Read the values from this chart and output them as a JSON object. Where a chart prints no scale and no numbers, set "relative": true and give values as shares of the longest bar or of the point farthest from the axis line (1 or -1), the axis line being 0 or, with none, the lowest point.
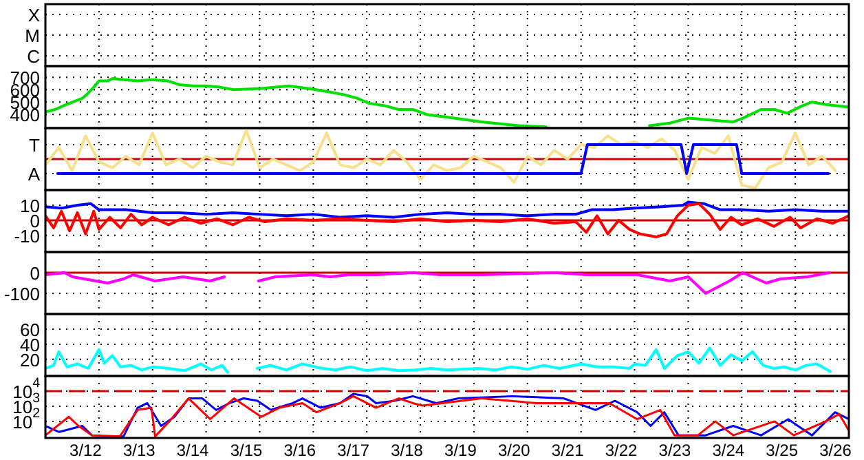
{
  "chart_data": [
    {
      "type": "heatmap",
      "categories": [
        null
      ],
      "y_categories": [
        "X",
        "M",
        "C"
      ],
      "cells": [
        [
          null
        ],
        [
          null
        ],
        [
          null
        ]
      ],
      "grid": true
    },
    {
      "type": "line",
      "xlim": [
        "--03-12",
        "--03-27"
      ],
      "ylim": [
        290,
        790
      ],
      "yticks": [
        400,
        500,
        600,
        700
      ],
      "grid": true,
      "tick_labels": "y",
      "series": [
        {
          "color": "#00e000",
          "x": [
            "--03-12T00:00",
            "--03-12T04:20",
            "--03-12T09:20",
            "--03-12T13:40",
            "--03-12T16:30",
            "--03-12T18:30",
            "--03-12T21:40",
            "--03-13T00:00",
            "--03-13T03:50",
            "--03-13T06:10",
            "--03-13T11:00",
            "--03-13T17:20",
            "--03-13T23:30",
            "--03-14T07:00",
            "--03-14T12:00",
            "--03-14T18:00",
            "--03-15T00:00",
            "--03-15T06:10",
            "--03-15T12:30",
            "--03-16T00:40",
            "--03-16T13:10",
            "--03-17T01:20",
            "--03-17T07:40",
            "--03-17T13:40",
            "--03-17T19:50",
            "--03-18T01:00",
            "--03-18T08:10",
            "--03-18T14:20",
            "--03-18T20:40",
            "--03-19T02:50",
            "--03-19T15:10",
            "--03-20T03:20",
            "--03-20T20:10",
            "--03-21T08:20",
            "--03-21T14:20",
            "--03-23T06:40",
            "--03-23T15:50",
            "--03-24T00:00",
            "--03-24T20:10",
            "--03-25T00:30",
            "--03-25T08:40",
            "--03-25T14:40",
            "--03-25T20:20",
            "--03-26T03:10",
            "--03-26T07:30",
            "--03-26T13:40",
            "--03-27T00:00"
          ],
          "values": [
            420,
            440,
            480,
            510,
            530,
            560,
            620,
            670,
            670,
            690,
            680,
            670,
            680,
            670,
            640,
            630,
            630,
            620,
            600,
            610,
            630,
            600,
            580,
            560,
            530,
            490,
            470,
            440,
            440,
            400,
            370,
            340,
            310,
            300,
            null,
            310,
            330,
            370,
            340,
            370,
            440,
            440,
            410,
            470,
            500,
            480,
            460
          ]
        }
      ]
    },
    {
      "type": "line",
      "relative": true,
      "xlim": [
        "--03-12",
        "--03-27"
      ],
      "annotations": [
        "T",
        "A"
      ],
      "grid": true,
      "tick_labels": "y",
      "ref_lines": [
        {
          "axis": "y",
          "value": 0.5,
          "color": "#cc0000"
        }
      ],
      "series": [
        {
          "color": "#f8e08c",
          "x": [
            "--03-12T00:00",
            "--03-12T06:00",
            "--03-12T12:00",
            "--03-12T18:00",
            "--03-13T00:00",
            "--03-13T06:00",
            "--03-13T12:00",
            "--03-13T18:00",
            "--03-14T00:00",
            "--03-14T06:00",
            "--03-14T12:00",
            "--03-14T18:00",
            "--03-15T00:00",
            "--03-15T06:00",
            "--03-15T12:00",
            "--03-15T18:00",
            "--03-16T00:00",
            "--03-16T06:00",
            "--03-16T12:00",
            "--03-16T18:00",
            "--03-17T00:00",
            "--03-17T06:00",
            "--03-17T12:00",
            "--03-17T18:00",
            "--03-18T00:00",
            "--03-18T06:00",
            "--03-18T12:00",
            "--03-18T18:00",
            "--03-19T00:00",
            "--03-19T06:00",
            "--03-19T12:00",
            "--03-19T18:00",
            "--03-20T00:00",
            "--03-20T06:00",
            "--03-20T12:00",
            "--03-20T18:00",
            "--03-21T00:00",
            "--03-21T06:00",
            "--03-21T12:00",
            "--03-21T18:00",
            "--03-22T00:00",
            "--03-22T06:00",
            "--03-22T12:00",
            "--03-22T18:00",
            "--03-23T00:00",
            "--03-23T06:00",
            "--03-23T12:00",
            "--03-23T18:00",
            "--03-24T00:00",
            "--03-24T06:00",
            "--03-24T12:00",
            "--03-24T18:00",
            "--03-25T00:00",
            "--03-25T06:00",
            "--03-25T12:00",
            "--03-25T18:00",
            "--03-26T00:00",
            "--03-26T06:00",
            "--03-26T12:00",
            "--03-26T18:00"
          ],
          "values": [
            0.4,
            0.7,
            0.3,
            0.9,
            0.45,
            0.35,
            0.55,
            0.4,
            0.95,
            0.4,
            0.5,
            0.35,
            0.55,
            0.45,
            0.4,
            1,
            0.35,
            0.5,
            0.4,
            0.3,
            0.45,
            0.95,
            0.4,
            0.35,
            0.5,
            0.4,
            0.65,
            0.45,
            0.15,
            0.4,
            0.3,
            0.35,
            0.55,
            0.45,
            0.35,
            0.1,
            0.55,
            0.4,
            0.65,
            0.5,
            0.75,
            0.7,
            0.9,
            0.75,
            0.8,
            0.7,
            0.85,
            0.65,
            0.15,
            0.7,
            0.6,
            0.9,
            0.05,
            0,
            0.35,
            0.45,
            0.95,
            0.4,
            0.55,
            0.3
          ]
        },
        {
          "color": "#0000ff",
          "x": [
            "--03-12T05:30",
            "--03-22T00:00",
            "--03-22T02:50",
            "--03-23T20:50",
            "--03-23T23:20",
            "--03-24T02:20",
            "--03-24T21:40",
            "--03-25T00:00",
            "--03-26T14:50"
          ],
          "values": [
            0.25,
            0.25,
            0.75,
            0.75,
            0.25,
            0.75,
            0.75,
            0.25,
            0.25
          ]
        }
      ]
    },
    {
      "type": "line",
      "xlim": [
        "--03-12",
        "--03-27"
      ],
      "ylim": [
        -21,
        20
      ],
      "yticks": [
        -10,
        0,
        10
      ],
      "grid": true,
      "tick_labels": "y",
      "ref_lines": [
        {
          "axis": "y",
          "value": 0,
          "color": "#cc0000"
        }
      ],
      "series": [
        {
          "color": "#0000ff",
          "x": [
            "--03-12T00:00",
            "--03-12T07:10",
            "--03-12T14:20",
            "--03-12T20:20",
            "--03-13T00:00",
            "--03-13T12:00",
            "--03-14T00:00",
            "--03-14T12:00",
            "--03-15T00:00",
            "--03-15T12:00",
            "--03-16T00:00",
            "--03-16T12:00",
            "--03-17T00:00",
            "--03-17T12:00",
            "--03-18T00:00",
            "--03-18T12:00",
            "--03-19T00:00",
            "--03-19T12:00",
            "--03-20T00:00",
            "--03-20T12:00",
            "--03-21T00:00",
            "--03-21T12:00",
            "--03-21T21:40",
            "--03-22T04:50",
            "--03-22T14:20",
            "--03-23T00:00",
            "--03-23T12:00",
            "--03-23T21:40",
            "--03-24T00:00",
            "--03-24T07:10",
            "--03-24T14:20",
            "--03-25T00:00",
            "--03-25T12:00",
            "--03-26T00:00",
            "--03-26T12:00",
            "--03-27T00:00"
          ],
          "values": [
            9,
            8,
            10,
            11,
            7,
            7,
            5,
            5,
            4,
            5,
            4,
            3,
            4,
            2,
            3,
            2,
            4,
            5,
            4,
            4,
            3,
            4,
            4,
            7,
            7,
            8,
            9,
            10,
            12,
            11,
            7,
            7,
            6,
            7,
            6,
            6
          ]
        },
        {
          "color": "#ff0000",
          "x": [
            "--03-12T00:00",
            "--03-12T03:40",
            "--03-12T07:10",
            "--03-12T10:50",
            "--03-12T14:20",
            "--03-12T18:00",
            "--03-12T21:40",
            "--03-13T00:00",
            "--03-13T04:50",
            "--03-13T09:40",
            "--03-13T14:20",
            "--03-13T19:10",
            "--03-14T00:00",
            "--03-14T07:10",
            "--03-14T14:20",
            "--03-14T21:40",
            "--03-15T04:50",
            "--03-15T12:00",
            "--03-15T19:10",
            "--03-16T02:20",
            "--03-16T12:00",
            "--03-17T00:00",
            "--03-17T12:00",
            "--03-18T00:00",
            "--03-18T12:00",
            "--03-19T00:00",
            "--03-19T12:00",
            "--03-20T00:00",
            "--03-20T12:00",
            "--03-21T00:00",
            "--03-21T12:00",
            "--03-21T21:40",
            "--03-22T02:20",
            "--03-22T07:10",
            "--03-22T12:00",
            "--03-22T16:50",
            "--03-22T21:40",
            "--03-23T02:20",
            "--03-23T09:40",
            "--03-23T14:20",
            "--03-23T19:10",
            "--03-24T00:00",
            "--03-24T04:50",
            "--03-24T09:40",
            "--03-24T14:20",
            "--03-24T19:10",
            "--03-25T00:00",
            "--03-25T07:10",
            "--03-25T14:20",
            "--03-25T21:40",
            "--03-26T02:20",
            "--03-26T09:40",
            "--03-26T16:50",
            "--03-27T00:00"
          ],
          "values": [
            3,
            -5,
            6,
            -7,
            5,
            -9,
            6,
            -6,
            2,
            -5,
            4,
            -3,
            2,
            -3,
            2,
            -2,
            1,
            -3,
            2,
            -1,
            1,
            0,
            1,
            0,
            -1,
            1,
            -1,
            0,
            -1,
            1,
            -2,
            -1,
            -8,
            3,
            -9,
            0,
            -6,
            -9,
            -11,
            -9,
            3,
            10,
            11,
            4,
            -6,
            2,
            -3,
            1,
            -4,
            2,
            -5,
            1,
            -2,
            3
          ]
        }
      ]
    },
    {
      "type": "line",
      "xlim": [
        "--03-12",
        "--03-27"
      ],
      "ylim": [
        -200,
        100
      ],
      "yticks": [
        -100,
        0
      ],
      "grid": true,
      "tick_labels": "y",
      "ref_lines": [
        {
          "axis": "y",
          "value": 0,
          "color": "#cc0000"
        }
      ],
      "series": [
        {
          "color": "#ff00ff",
          "x": [
            "--03-12T00:00",
            "--03-12T08:40",
            "--03-12T12:10",
            "--03-13T03:50",
            "--03-13T11:00",
            "--03-13T15:20",
            "--03-14T01:10",
            "--03-14T13:40",
            "--03-15T01:50",
            "--03-15T08:10",
            "--03-15T16:50",
            "--03-15T23:30",
            "--03-16T07:00",
            "--03-16T23:30",
            "--03-17T07:40",
            "--03-17T15:40",
            "--03-18T04:10",
            "--03-18T20:40",
            "--03-19T08:50",
            "--03-20T03:20",
            "--03-21T12:00",
            "--03-22T02:50",
            "--03-23T01:10",
            "--03-23T15:50",
            "--03-24T00:00",
            "--03-24T07:50",
            "--03-24T18:30",
            "--03-25T00:30",
            "--03-25T11:00",
            "--03-25T17:20",
            "--03-26T05:30",
            "--03-26T15:20"
          ],
          "values": [
            -10,
            0,
            -20,
            -50,
            -30,
            -10,
            -40,
            -20,
            -40,
            -20,
            null,
            -40,
            -20,
            -10,
            -20,
            -10,
            -10,
            0,
            -10,
            -10,
            0,
            -10,
            -10,
            -40,
            -20,
            -100,
            -40,
            0,
            -50,
            -30,
            -20,
            0
          ]
        }
      ]
    },
    {
      "type": "line",
      "xlim": [
        "--03-12",
        "--03-27"
      ],
      "ylim": [
        -2,
        80
      ],
      "yticks": [
        20,
        40,
        60
      ],
      "grid": true,
      "tick_labels": "y",
      "series": [
        {
          "color": "#00ffff",
          "x": [
            "--03-12T00:00",
            "--03-12T03:40",
            "--03-12T06:00",
            "--03-12T09:40",
            "--03-12T14:20",
            "--03-12T19:10",
            "--03-13T00:00",
            "--03-13T02:20",
            "--03-13T06:00",
            "--03-13T09:40",
            "--03-13T14:20",
            "--03-13T19:10",
            "--03-14T00:00",
            "--03-14T07:10",
            "--03-14T14:20",
            "--03-14T21:40",
            "--03-15T02:20",
            "--03-15T07:10",
            "--03-15T09:40",
            "--03-15T16:50",
            "--03-15T22:50",
            "--03-16T04:50",
            "--03-16T12:00",
            "--03-16T19:10",
            "--03-17T02:20",
            "--03-17T09:40",
            "--03-17T16:50",
            "--03-18T00:00",
            "--03-18T07:10",
            "--03-18T14:20",
            "--03-18T21:40",
            "--03-19T04:50",
            "--03-19T12:00",
            "--03-19T19:10",
            "--03-20T02:20",
            "--03-20T09:40",
            "--03-20T16:50",
            "--03-21T00:00",
            "--03-21T07:10",
            "--03-21T14:20",
            "--03-22T00:00",
            "--03-22T07:10",
            "--03-22T14:20",
            "--03-22T21:40",
            "--03-23T00:00",
            "--03-23T04:50",
            "--03-23T09:40",
            "--03-23T13:20",
            "--03-23T19:10",
            "--03-24T00:00",
            "--03-24T04:50",
            "--03-24T09:40",
            "--03-24T14:20",
            "--03-24T19:10",
            "--03-25T00:00",
            "--03-25T04:50",
            "--03-25T09:40",
            "--03-25T14:20",
            "--03-25T19:10",
            "--03-26T00:00",
            "--03-26T04:50",
            "--03-26T09:40",
            "--03-26T15:40"
          ],
          "values": [
            8,
            12,
            30,
            10,
            14,
            8,
            33,
            15,
            25,
            10,
            12,
            6,
            10,
            8,
            5,
            14,
            6,
            12,
            3,
            null,
            8,
            12,
            6,
            14,
            9,
            6,
            10,
            5,
            8,
            5,
            6,
            8,
            6,
            7,
            8,
            6,
            10,
            7,
            12,
            8,
            14,
            10,
            10,
            8,
            14,
            12,
            33,
            8,
            25,
            30,
            15,
            35,
            12,
            26,
            18,
            30,
            12,
            8,
            10,
            6,
            12,
            14,
            4
          ]
        }
      ]
    },
    {
      "type": "line",
      "log": true,
      "xlim": [
        "--03-12",
        "--03-27"
      ],
      "xticks": [
        {
          "value": "--03-12T18:00",
          "label": "3/12"
        },
        {
          "value": "--03-13",
          "label": null
        },
        {
          "value": "--03-13T18:00",
          "label": "3/13"
        },
        {
          "value": "--03-14",
          "label": null
        },
        {
          "value": "--03-14T18:00",
          "label": "3/14"
        },
        {
          "value": "--03-15",
          "label": null
        },
        {
          "value": "--03-15T18:00",
          "label": "3/15"
        },
        {
          "value": "--03-16",
          "label": null
        },
        {
          "value": "--03-16T18:00",
          "label": "3/16"
        },
        {
          "value": "--03-17",
          "label": null
        },
        {
          "value": "--03-17T18:00",
          "label": "3/17"
        },
        {
          "value": "--03-18",
          "label": null
        },
        {
          "value": "--03-18T18:00",
          "label": "3/18"
        },
        {
          "value": "--03-19",
          "label": null
        },
        {
          "value": "--03-19T18:00",
          "label": "3/19"
        },
        {
          "value": "--03-20",
          "label": null
        },
        {
          "value": "--03-20T18:00",
          "label": "3/20"
        },
        {
          "value": "--03-21",
          "label": null
        },
        {
          "value": "--03-21T18:00",
          "label": "3/21"
        },
        {
          "value": "--03-22",
          "label": null
        },
        {
          "value": "--03-22T18:00",
          "label": "3/22"
        },
        {
          "value": "--03-23",
          "label": null
        },
        {
          "value": "--03-23T18:00",
          "label": "3/23"
        },
        {
          "value": "--03-24",
          "label": null
        },
        {
          "value": "--03-24T18:00",
          "label": "3/24"
        },
        {
          "value": "--03-25",
          "label": null
        },
        {
          "value": "--03-25T18:00",
          "label": "3/25"
        },
        {
          "value": "--03-26",
          "label": null
        },
        {
          "value": "--03-26T18:00",
          "label": "3/26"
        }
      ],
      "ylim": [
        8,
        100000
      ],
      "yticks": [
        {
          "value": 100,
          "label": "10$^{2}$"
        },
        {
          "value": 1000,
          "label": "10$^{3}$"
        },
        {
          "value": 10000,
          "label": "10$^{4}$"
        }
      ],
      "grid": true,
      "ref_lines": [
        {
          "axis": "y",
          "value": 10000,
          "color": "#cc0000",
          "line_style": "dashed"
        }
      ],
      "series": [
        {
          "color": "#0000ff",
          "x": [
            "--03-12T00:00",
            "--03-12T06:10",
            "--03-12T16:30",
            "--03-12T20:50",
            "--03-13T03:10",
            "--03-13T11:00",
            "--03-13T17:20",
            "--03-13T21:40",
            "--03-14T03:50",
            "--03-14T09:50",
            "--03-14T16:10",
            "--03-14T22:20",
            "--03-15T04:30",
            "--03-15T10:30",
            "--03-15T16:50",
            "--03-15T23:00",
            "--03-16T05:00",
            "--03-16T14:50",
            "--03-16T19:10",
            "--03-17T03:20",
            "--03-17T12:00",
            "--03-17T18:00",
            "--03-18T00:10",
            "--03-18T04:10",
            "--03-18T12:30",
            "--03-18T20:40",
            "--03-19T07:10",
            "--03-19T17:00",
            "--03-20T17:30",
            "--03-21T16:20",
            "--03-22T06:30",
            "--03-22T15:10",
            "--03-23T01:10",
            "--03-23T07:10",
            "--03-23T13:20",
            "--03-23T19:40",
            "--03-24T07:50",
            "--03-24T20:10",
            "--03-25T08:40",
            "--03-25T20:50",
            "--03-26T01:10",
            "--03-26T07:30",
            "--03-26T17:50",
            "--03-27T00:00"
          ],
          "values": [
            50,
            20,
            50,
            12,
            10,
            10,
            800,
            1600,
            50,
            200,
            3300,
            3300,
            570,
            1600,
            3300,
            2300,
            570,
            1600,
            3300,
            800,
            1600,
            6600,
            4600,
            1600,
            2300,
            4600,
            1600,
            3300,
            4600,
            3300,
            570,
            2300,
            400,
            50,
            400,
            12,
            12,
            50,
            12,
            140,
            50,
            12,
            400,
            140
          ]
        },
        {
          "color": "#ff0000",
          "x": [
            "--03-12T00:00",
            "--03-12T10:30",
            "--03-12T14:50",
            "--03-12T20:50",
            "--03-13T09:20",
            "--03-13T17:20",
            "--03-13T23:30",
            "--03-14T01:10",
            "--03-14T07:30",
            "--03-14T16:10",
            "--03-15T01:50",
            "--03-15T12:30",
            "--03-16T00:40",
            "--03-16T08:50",
            "--03-16T19:10",
            "--03-17T01:30",
            "--03-17T12:00",
            "--03-17T18:00",
            "--03-18T04:10",
            "--03-18T14:20",
            "--03-18T20:40",
            "--03-19T01:00",
            "--03-20T03:20",
            "--03-21T04:10",
            "--03-21T20:40",
            "--03-22T12:40",
            "--03-23T01:10",
            "--03-23T11:30",
            "--03-23T17:50",
            "--03-24T04:20",
            "--03-24T12:10",
            "--03-24T20:10",
            "--03-25T14:40",
            "--03-25T23:20",
            "--03-26T13:40",
            "--03-26T19:40",
            "--03-27T00:00"
          ],
          "values": [
            12,
            200,
            50,
            12,
            10,
            570,
            800,
            10,
            100,
            3300,
            140,
            3300,
            200,
            800,
            1600,
            400,
            1600,
            4600,
            800,
            3300,
            1600,
            1100,
            3300,
            1600,
            1600,
            1600,
            140,
            570,
            12,
            12,
            100,
            12,
            100,
            12,
            100,
            300,
            25
          ]
        }
      ]
    }
  ]
}
